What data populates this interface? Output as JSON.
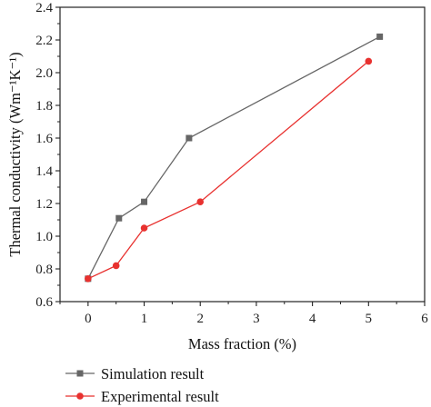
{
  "chart_data": {
    "type": "line",
    "xlabel": "Mass fraction (%)",
    "ylabel": "Thermal conductivity (Wm⁻¹K⁻¹)",
    "xlim": [
      -0.5,
      6
    ],
    "ylim": [
      0.6,
      2.4
    ],
    "xticks": [
      "0",
      "1",
      "2",
      "3",
      "4",
      "5",
      "6"
    ],
    "yticks": [
      "0.6",
      "0.8",
      "1.0",
      "1.2",
      "1.4",
      "1.6",
      "1.8",
      "2.0",
      "2.2",
      "2.4"
    ],
    "grid": false,
    "legend_position": "bottom",
    "series": [
      {
        "name": "Simulation result",
        "color": "#666666",
        "marker": "square",
        "x": [
          0,
          0.55,
          1,
          1.8,
          5.2
        ],
        "y": [
          0.74,
          1.11,
          1.21,
          1.6,
          2.22
        ]
      },
      {
        "name": "Experimental result",
        "color": "#e8312f",
        "marker": "circle",
        "x": [
          0,
          0.5,
          1,
          2,
          5
        ],
        "y": [
          0.74,
          0.82,
          1.05,
          1.21,
          2.07
        ]
      }
    ]
  }
}
